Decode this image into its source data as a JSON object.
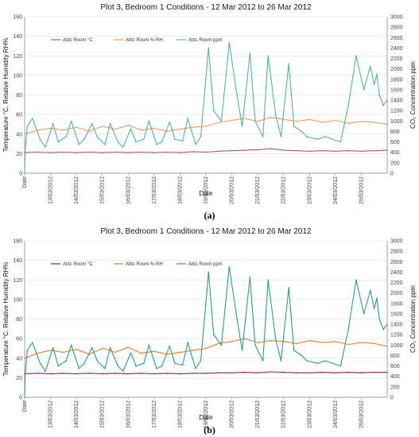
{
  "panels": [
    {
      "label": "(a)",
      "chart_data": {
        "type": "line",
        "title": "Plot 3, Bedroom 1 Conditions - 12 Mar 2012 to 26 Mar 2012",
        "xlabel": "Date",
        "ylabel_left": "Temperature °C, Relative Humidity RH%",
        "ylabel_right": "CO₂ Concentration ppm",
        "xlim": [
          0,
          14
        ],
        "ylim_left": [
          0,
          160
        ],
        "ylim_right": [
          0,
          3000
        ],
        "y_ticks_left": [
          0,
          20,
          40,
          60,
          80,
          100,
          120,
          140,
          160
        ],
        "y_ticks_right": [
          0,
          200,
          400,
          600,
          800,
          1000,
          1200,
          1400,
          1600,
          1800,
          2000,
          2200,
          2400,
          2600,
          2800,
          3000
        ],
        "x_tick_labels": [
          "Date",
          "13/03/2012",
          "14/03/2012",
          "15/03/2012",
          "16/03/2012",
          "17/03/2012",
          "18/03/2012",
          "19/03/2012",
          "20/03/2012",
          "21/03/2012",
          "22/03/2012",
          "23/03/2012",
          "24/03/2012",
          "25/03/2012"
        ],
        "grid": "horizontal",
        "legend_position": "top-left",
        "series": [
          {
            "name": "Attic Room °C",
            "axis": "left",
            "color": "#b0547a",
            "x": [
              0,
              0.5,
              1,
              1.5,
              2,
              2.5,
              3,
              3.5,
              4,
              4.5,
              5,
              5.5,
              6,
              6.5,
              7,
              7.5,
              8,
              8.5,
              9,
              9.5,
              10,
              10.5,
              11,
              11.5,
              12,
              12.5,
              13,
              13.5,
              14
            ],
            "y": [
              21,
              21.5,
              21,
              21.5,
              21,
              21.5,
              21,
              21.5,
              21,
              21.5,
              21,
              21.5,
              21,
              22,
              21.5,
              22.5,
              23,
              23.5,
              24,
              25,
              23.5,
              23,
              22.5,
              23,
              22.5,
              23,
              22.5,
              23,
              23.5
            ]
          },
          {
            "name": "Attic Room % RH",
            "axis": "left",
            "color": "#f39c54",
            "x": [
              0,
              0.5,
              1,
              1.5,
              2,
              2.5,
              3,
              3.5,
              4,
              4.5,
              5,
              5.5,
              6,
              6.5,
              7,
              7.5,
              8,
              8.5,
              9,
              9.5,
              10,
              10.5,
              11,
              11.5,
              12,
              12.5,
              13,
              13.5,
              14
            ],
            "y": [
              40,
              44,
              46,
              44,
              47,
              43,
              48,
              45,
              49,
              44,
              46,
              43,
              45,
              47,
              48,
              52,
              54,
              56,
              53,
              57,
              55,
              53,
              55,
              52,
              54,
              51,
              53,
              52,
              50
            ]
          },
          {
            "name": "Attic Room ppm",
            "axis": "right",
            "color": "#4fb3ad",
            "x": [
              0,
              0.02,
              0.1,
              0.3,
              0.6,
              0.8,
              1.1,
              1.3,
              1.6,
              1.8,
              2.1,
              2.3,
              2.6,
              2.8,
              3.1,
              3.3,
              3.6,
              3.8,
              4.1,
              4.3,
              4.6,
              4.8,
              5.1,
              5.3,
              5.6,
              5.8,
              6.1,
              6.3,
              6.6,
              6.8,
              7.1,
              7.3,
              7.6,
              7.9,
              8.2,
              8.4,
              8.7,
              8.9,
              9.2,
              9.4,
              9.7,
              9.9,
              10.2,
              10.4,
              10.7,
              10.9,
              11.3,
              11.6,
              12.2,
              12.5,
              12.8,
              13.1,
              13.35,
              13.5,
              13.6,
              13.7,
              13.85,
              14
            ],
            "y": [
              0,
              450,
              900,
              1050,
              650,
              500,
              950,
              600,
              700,
              1000,
              550,
              650,
              950,
              700,
              550,
              950,
              600,
              500,
              850,
              600,
              650,
              1000,
              550,
              600,
              980,
              650,
              620,
              1050,
              550,
              700,
              2400,
              1200,
              1000,
              2500,
              1500,
              900,
              2300,
              1000,
              700,
              2250,
              1100,
              700,
              2100,
              900,
              800,
              700,
              650,
              700,
              600,
              1300,
              2250,
              1600,
              2050,
              1700,
              1900,
              1500,
              1300,
              1400
            ]
          }
        ]
      }
    },
    {
      "label": "(b)",
      "chart_data": {
        "type": "line",
        "title": "Plot 3, Bedroom 1 Conditions - 12 Mar 2012 to 26 Mar 2012",
        "xlabel": "Date",
        "ylabel_left": "Temperature °C, Relative Humidity RH%",
        "ylabel_right": "CO₂ Concentration ppm",
        "xlim": [
          0,
          14
        ],
        "ylim_left": [
          0,
          160
        ],
        "ylim_right": [
          0,
          3000
        ],
        "y_ticks_left": [
          0,
          20,
          40,
          60,
          80,
          100,
          120,
          140,
          160
        ],
        "y_ticks_right": [
          0,
          200,
          400,
          600,
          800,
          1000,
          1200,
          1400,
          1600,
          1800,
          2000,
          2200,
          2400,
          2600,
          2800,
          3000
        ],
        "x_tick_labels": [
          "Date",
          "13/03/2012",
          "14/03/2012",
          "15/03/2012",
          "16/03/2012",
          "17/03/2012",
          "18/03/2012",
          "19/03/2012",
          "20/03/2012",
          "21/03/2012",
          "22/03/2012",
          "23/03/2012",
          "24/03/2012",
          "25/03/2012"
        ],
        "grid": "horizontal",
        "legend_position": "top-left",
        "series": [
          {
            "name": "Attic Room °C",
            "axis": "left",
            "color": "#8a2450",
            "x": [
              0,
              0.5,
              1,
              1.5,
              2,
              2.5,
              3,
              3.5,
              4,
              4.5,
              5,
              5.5,
              6,
              6.5,
              7,
              7.5,
              8,
              8.5,
              9,
              9.5,
              10,
              10.5,
              11,
              11.5,
              12,
              12.5,
              13,
              13.5,
              14
            ],
            "y": [
              24,
              24.5,
              24,
              24.5,
              24,
              24.5,
              24,
              24.5,
              24,
              24.5,
              24,
              24.5,
              24,
              24.5,
              24.5,
              25,
              25,
              25.5,
              25,
              26,
              25.5,
              25,
              25,
              25.5,
              25,
              25.5,
              25,
              25.5,
              25.5
            ]
          },
          {
            "name": "Attic Room % RH",
            "axis": "left",
            "color": "#f07c22",
            "x": [
              0,
              0.5,
              1,
              1.5,
              2,
              2.5,
              3,
              3.5,
              4,
              4.5,
              5,
              5.5,
              6,
              6.5,
              7,
              7.5,
              8,
              8.5,
              9,
              9.5,
              10,
              10.5,
              11,
              11.5,
              12,
              12.5,
              13,
              13.5,
              14
            ],
            "y": [
              40,
              45,
              48,
              46,
              49,
              44,
              50,
              46,
              51,
              45,
              47,
              44,
              46,
              48,
              50,
              55,
              57,
              60,
              56,
              58,
              57,
              55,
              58,
              56,
              57,
              54,
              56,
              55,
              52
            ]
          },
          {
            "name": "Attic Room ppm",
            "axis": "right",
            "color": "#2b9a93",
            "x": [
              0,
              0.02,
              0.1,
              0.3,
              0.6,
              0.8,
              1.1,
              1.3,
              1.6,
              1.8,
              2.1,
              2.3,
              2.6,
              2.8,
              3.1,
              3.3,
              3.6,
              3.8,
              4.1,
              4.3,
              4.6,
              4.8,
              5.1,
              5.3,
              5.6,
              5.8,
              6.1,
              6.3,
              6.6,
              6.8,
              7.1,
              7.3,
              7.6,
              7.9,
              8.2,
              8.4,
              8.7,
              8.9,
              9.2,
              9.4,
              9.7,
              9.9,
              10.2,
              10.4,
              10.7,
              10.9,
              11.3,
              11.6,
              12.2,
              12.5,
              12.8,
              13.1,
              13.35,
              13.5,
              13.6,
              13.7,
              13.85,
              14
            ],
            "y": [
              0,
              450,
              900,
              1050,
              650,
              500,
              950,
              600,
              700,
              1000,
              550,
              650,
              950,
              700,
              550,
              950,
              600,
              500,
              850,
              600,
              650,
              1000,
              550,
              600,
              980,
              650,
              620,
              1050,
              550,
              700,
              2400,
              1200,
              1000,
              2500,
              1500,
              900,
              2300,
              1000,
              700,
              2250,
              1100,
              700,
              2100,
              900,
              800,
              700,
              650,
              700,
              600,
              1300,
              2250,
              1600,
              2050,
              1700,
              1900,
              1500,
              1300,
              1400
            ]
          }
        ]
      }
    }
  ]
}
